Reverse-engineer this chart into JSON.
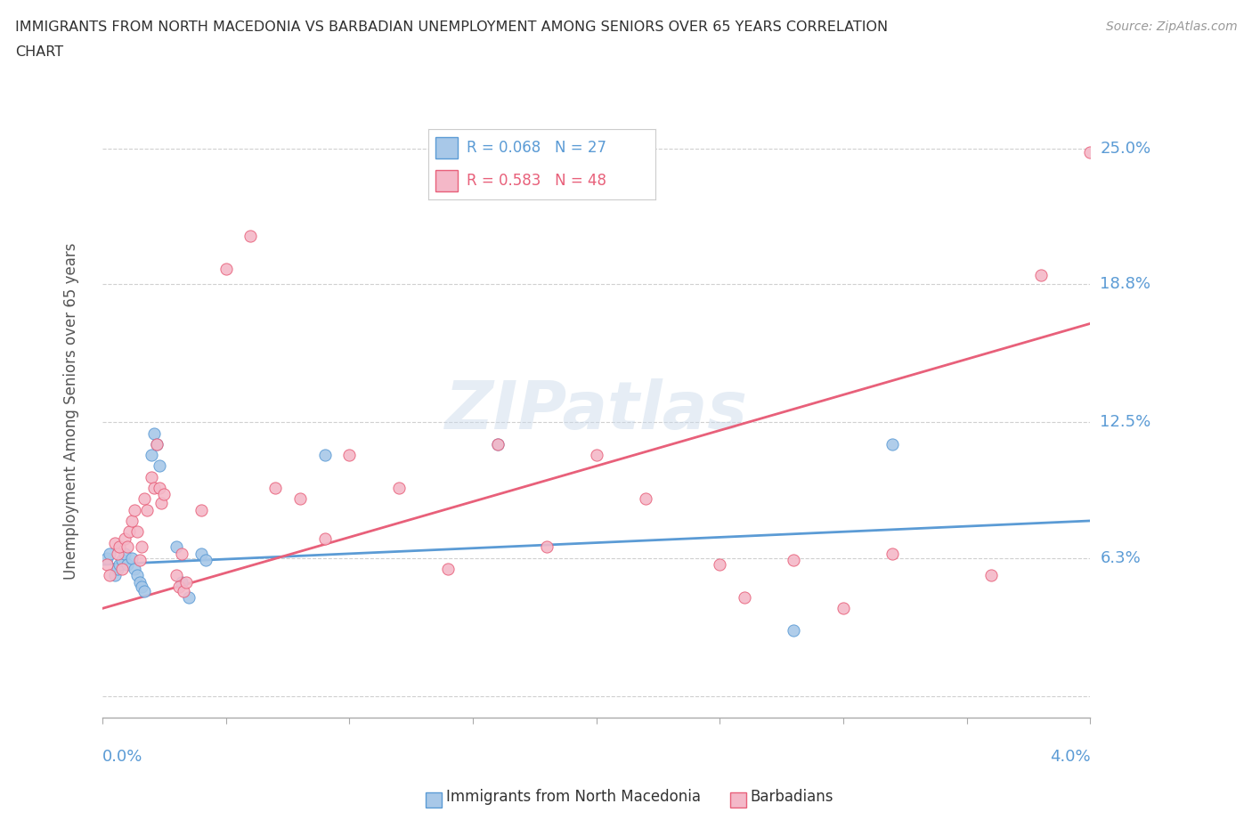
{
  "title_line1": "IMMIGRANTS FROM NORTH MACEDONIA VS BARBADIAN UNEMPLOYMENT AMONG SENIORS OVER 65 YEARS CORRELATION",
  "title_line2": "CHART",
  "source": "Source: ZipAtlas.com",
  "ylabel": "Unemployment Among Seniors over 65 years",
  "legend_blue_R": "R = 0.068",
  "legend_blue_N": "N = 27",
  "legend_pink_R": "R = 0.583",
  "legend_pink_N": "N = 48",
  "blue_scatter_x": [
    0.0002,
    0.0003,
    0.0005,
    0.0006,
    0.0007,
    0.0008,
    0.0009,
    0.001,
    0.0012,
    0.0013,
    0.0014,
    0.0015,
    0.0016,
    0.0017,
    0.002,
    0.0021,
    0.0022,
    0.0023,
    0.003,
    0.0032,
    0.0035,
    0.004,
    0.0042,
    0.009,
    0.016,
    0.028,
    0.032
  ],
  "blue_scatter_y": [
    0.063,
    0.065,
    0.055,
    0.058,
    0.06,
    0.062,
    0.065,
    0.06,
    0.063,
    0.058,
    0.055,
    0.052,
    0.05,
    0.048,
    0.11,
    0.12,
    0.115,
    0.105,
    0.068,
    0.052,
    0.045,
    0.065,
    0.062,
    0.11,
    0.115,
    0.03,
    0.115
  ],
  "pink_scatter_x": [
    0.0002,
    0.0003,
    0.0005,
    0.0006,
    0.0007,
    0.0008,
    0.0009,
    0.001,
    0.0011,
    0.0012,
    0.0013,
    0.0014,
    0.0015,
    0.0016,
    0.0017,
    0.0018,
    0.002,
    0.0021,
    0.0022,
    0.0023,
    0.0024,
    0.0025,
    0.003,
    0.0031,
    0.0032,
    0.0033,
    0.0034,
    0.004,
    0.005,
    0.006,
    0.007,
    0.008,
    0.009,
    0.01,
    0.012,
    0.014,
    0.016,
    0.018,
    0.02,
    0.022,
    0.025,
    0.026,
    0.028,
    0.03,
    0.032,
    0.036,
    0.038,
    0.04
  ],
  "pink_scatter_y": [
    0.06,
    0.055,
    0.07,
    0.065,
    0.068,
    0.058,
    0.072,
    0.068,
    0.075,
    0.08,
    0.085,
    0.075,
    0.062,
    0.068,
    0.09,
    0.085,
    0.1,
    0.095,
    0.115,
    0.095,
    0.088,
    0.092,
    0.055,
    0.05,
    0.065,
    0.048,
    0.052,
    0.085,
    0.195,
    0.21,
    0.095,
    0.09,
    0.072,
    0.11,
    0.095,
    0.058,
    0.115,
    0.068,
    0.11,
    0.09,
    0.06,
    0.045,
    0.062,
    0.04,
    0.065,
    0.055,
    0.192,
    0.248
  ],
  "blue_color": "#a8c8e8",
  "pink_color": "#f4b8c8",
  "blue_line_color": "#5b9bd5",
  "pink_line_color": "#e8607a",
  "background_color": "#ffffff",
  "grid_color": "#d0d0d0",
  "title_color": "#303030",
  "axis_label_color": "#5b9bd5",
  "legend_text_color_blue": "#5b9bd5",
  "legend_text_color_pink": "#e8607a",
  "xmin": 0.0,
  "xmax": 0.04,
  "ymin": -0.01,
  "ymax": 0.27,
  "ytick_vals": [
    0.0,
    0.063,
    0.125,
    0.188,
    0.25
  ],
  "ytick_labels": [
    "",
    "6.3%",
    "12.5%",
    "18.8%",
    "25.0%"
  ],
  "blue_trend_x": [
    0.0,
    0.04
  ],
  "blue_trend_y": [
    0.06,
    0.08
  ],
  "pink_trend_x": [
    0.0,
    0.04
  ],
  "pink_trend_y": [
    0.04,
    0.17
  ]
}
